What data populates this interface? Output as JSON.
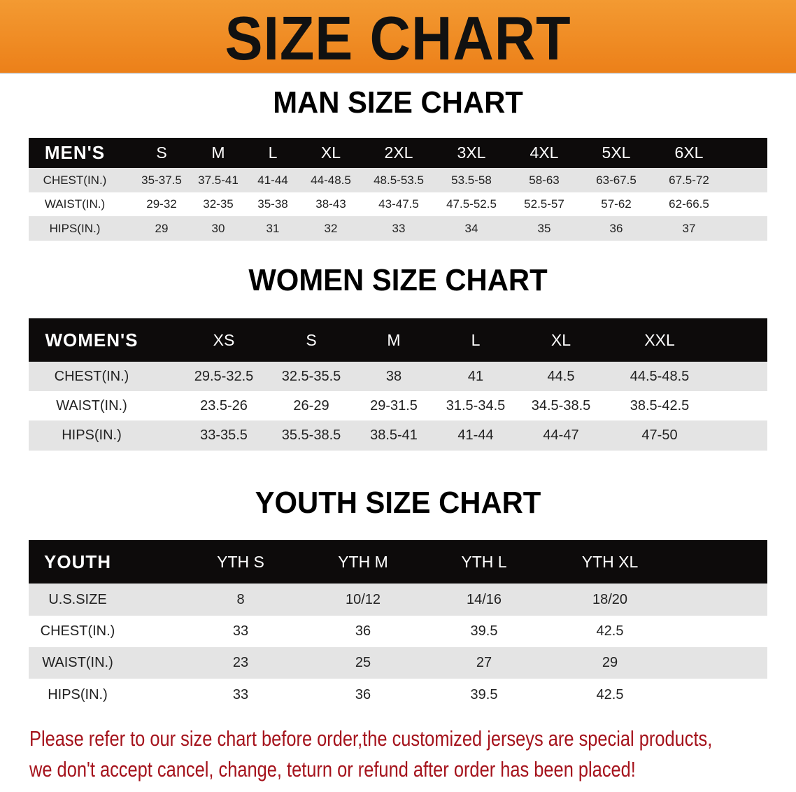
{
  "banner": {
    "title": "SIZE CHART",
    "color": "#ee8520"
  },
  "men": {
    "title": "MAN SIZE CHART",
    "header": [
      "MEN'S",
      "S",
      "M",
      "L",
      "XL",
      "2XL",
      "3XL",
      "4XL",
      "5XL",
      "6XL"
    ],
    "rows": [
      [
        "CHEST(IN.)",
        "35-37.5",
        "37.5-41",
        "41-44",
        "44-48.5",
        "48.5-53.5",
        "53.5-58",
        "58-63",
        "63-67.5",
        "67.5-72"
      ],
      [
        "WAIST(IN.)",
        "29-32",
        "32-35",
        "35-38",
        "38-43",
        "43-47.5",
        "47.5-52.5",
        "52.5-57",
        "57-62",
        "62-66.5"
      ],
      [
        "HIPS(IN.)",
        "29",
        "30",
        "31",
        "32",
        "33",
        "34",
        "35",
        "36",
        "37"
      ]
    ]
  },
  "women": {
    "title": "WOMEN SIZE CHART",
    "header": [
      "WOMEN'S",
      "XS",
      "S",
      "M",
      "L",
      "XL",
      "XXL"
    ],
    "rows": [
      [
        "CHEST(IN.)",
        "29.5-32.5",
        "32.5-35.5",
        "38",
        "41",
        "44.5",
        "44.5-48.5"
      ],
      [
        "WAIST(IN.)",
        "23.5-26",
        "26-29",
        "29-31.5",
        "31.5-34.5",
        "34.5-38.5",
        "38.5-42.5"
      ],
      [
        "HIPS(IN.)",
        "33-35.5",
        "35.5-38.5",
        "38.5-41",
        "41-44",
        "44-47",
        "47-50"
      ]
    ]
  },
  "youth": {
    "title": "YOUTH SIZE CHART",
    "header": [
      "YOUTH",
      "YTH S",
      "YTH M",
      "YTH L",
      "YTH XL"
    ],
    "rows": [
      [
        "U.S.SIZE",
        "8",
        "10/12",
        "14/16",
        "18/20"
      ],
      [
        "CHEST(IN.)",
        "33",
        "36",
        "39.5",
        "42.5"
      ],
      [
        "WAIST(IN.)",
        "23",
        "25",
        "27",
        "29"
      ],
      [
        "HIPS(IN.)",
        "33",
        "36",
        "39.5",
        "42.5"
      ]
    ]
  },
  "notice": {
    "line1": "Please refer to our size chart before order,the customized jerseys are special products,",
    "line2": "we don't accept cancel, change, teturn or refund after order has been placed!",
    "color": "#a5131c"
  }
}
